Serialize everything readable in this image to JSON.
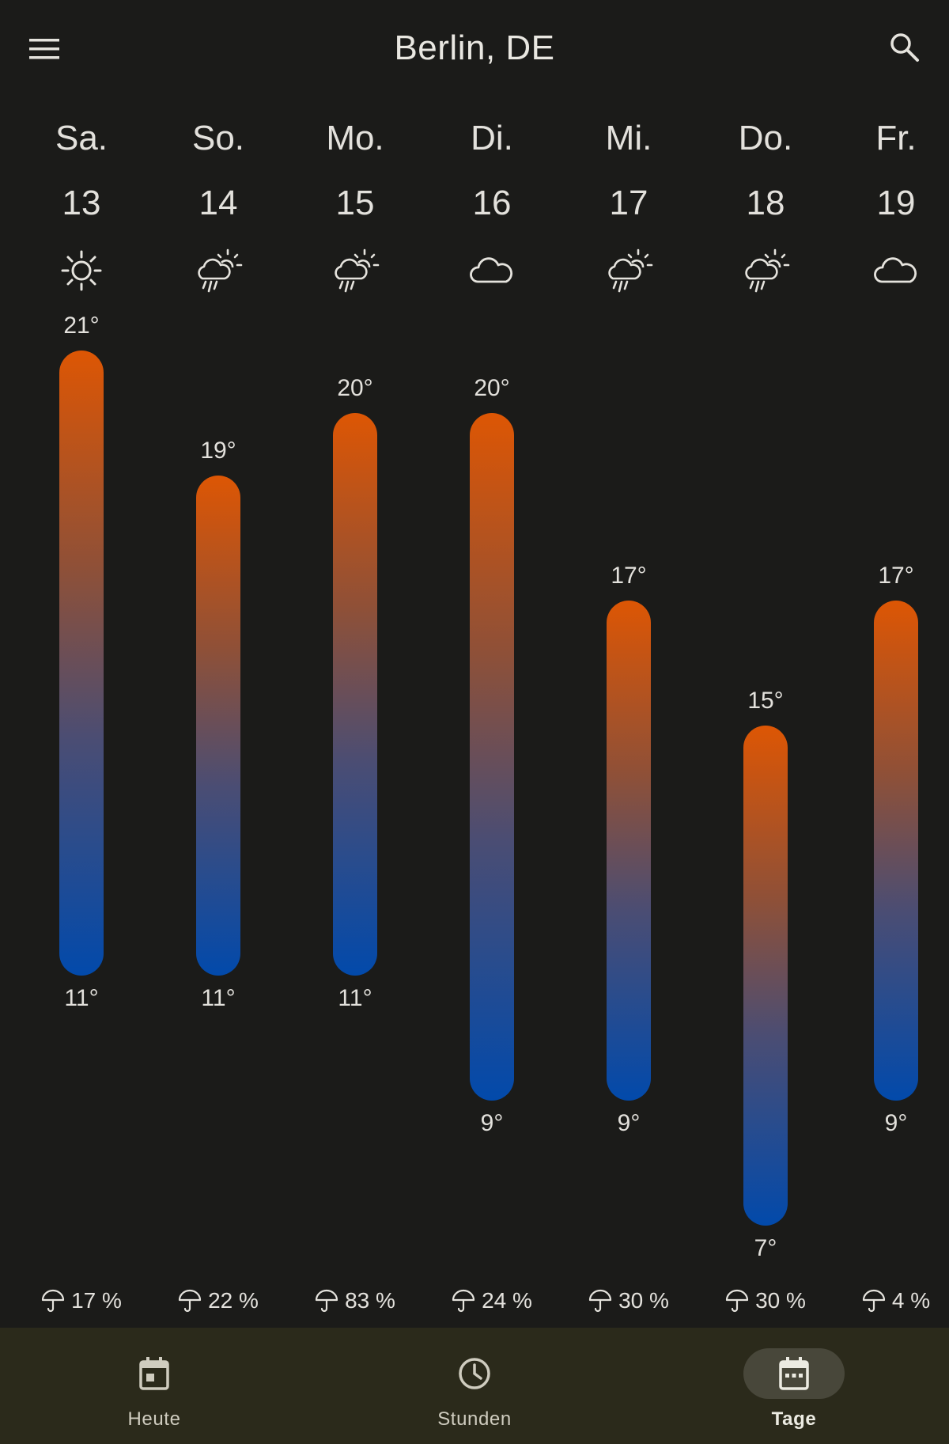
{
  "header": {
    "title": "Berlin, DE",
    "menu_icon": "menu-icon",
    "search_icon": "search-icon"
  },
  "temp_scale": {
    "max": 21,
    "min": 7
  },
  "days": [
    {
      "name": "Sa.",
      "date": "13",
      "icon": "sun-icon",
      "high": 21,
      "low": 11,
      "high_label": "21°",
      "low_label": "11°",
      "precip": "17 %"
    },
    {
      "name": "So.",
      "date": "14",
      "icon": "sun-rain-icon",
      "high": 19,
      "low": 11,
      "high_label": "19°",
      "low_label": "11°",
      "precip": "22 %"
    },
    {
      "name": "Mo.",
      "date": "15",
      "icon": "sun-rain-icon",
      "high": 20,
      "low": 11,
      "high_label": "20°",
      "low_label": "11°",
      "precip": "83 %"
    },
    {
      "name": "Di.",
      "date": "16",
      "icon": "cloud-icon",
      "high": 20,
      "low": 9,
      "high_label": "20°",
      "low_label": "9°",
      "precip": "24 %"
    },
    {
      "name": "Mi.",
      "date": "17",
      "icon": "sun-rain-icon",
      "high": 17,
      "low": 9,
      "high_label": "17°",
      "low_label": "9°",
      "precip": "30 %"
    },
    {
      "name": "Do.",
      "date": "18",
      "icon": "sun-rain-icon",
      "high": 15,
      "low": 7,
      "high_label": "15°",
      "low_label": "7°",
      "precip": "30 %"
    },
    {
      "name": "Fr.",
      "date": "19",
      "icon": "cloud-icon",
      "high": 17,
      "low": 9,
      "high_label": "17°",
      "low_label": "9°",
      "precip": "4 %"
    }
  ],
  "nav": {
    "items": [
      {
        "label": "Heute",
        "icon": "calendar-today-icon",
        "active": false
      },
      {
        "label": "Stunden",
        "icon": "clock-icon",
        "active": false
      },
      {
        "label": "Tage",
        "icon": "calendar-days-icon",
        "active": true
      }
    ]
  },
  "colors": {
    "background": "#1b1b19",
    "bar_warm": "#dd5604",
    "bar_cold": "#024aab",
    "nav_background": "#2b2a1b",
    "nav_active_pill": "#48473a"
  }
}
